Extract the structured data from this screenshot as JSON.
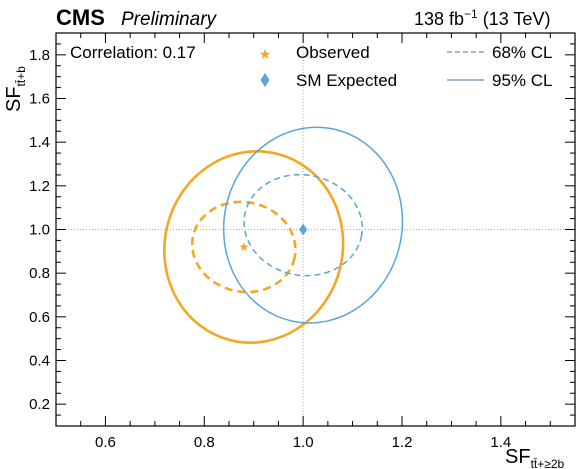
{
  "header": {
    "experiment": "CMS",
    "status": "Preliminary",
    "lumi_value": "138 fb",
    "lumi_exp": "−1",
    "energy": " (13 TeV)"
  },
  "annotation": {
    "correlation": "Correlation: 0.17"
  },
  "legend": {
    "observed": "Observed",
    "expected": "SM Expected",
    "cl68": "68% CL",
    "cl95": "95% CL"
  },
  "axes": {
    "xlabel_main": "SF",
    "xlabel_sub": "tt̄+≥2b",
    "ylabel_main": "SF",
    "ylabel_sub": "tt̄+b"
  },
  "colors": {
    "observed": "#f5a623",
    "expected": "#5aa5da",
    "reference": "#999999"
  },
  "chart_data": {
    "type": "scatter",
    "xlim": [
      0.5,
      1.55
    ],
    "ylim": [
      0.1,
      1.9
    ],
    "xticks": [
      0.6,
      0.8,
      1.0,
      1.2,
      1.4
    ],
    "xtick_labels": [
      "0.6",
      "0.8",
      "1.0",
      "1.2",
      "1.4"
    ],
    "yticks": [
      0.2,
      0.4,
      0.6,
      0.8,
      1.0,
      1.2,
      1.4,
      1.6,
      1.8
    ],
    "ytick_labels": [
      "0.2",
      "0.4",
      "0.6",
      "0.8",
      "1.0",
      "1.2",
      "1.4",
      "1.6",
      "1.8"
    ],
    "reference_lines": {
      "x": 1.0,
      "y": 1.0
    },
    "points": [
      {
        "name": "Observed",
        "x": 0.88,
        "y": 0.92,
        "marker": "star"
      },
      {
        "name": "SM Expected",
        "x": 1.0,
        "y": 1.0,
        "marker": "diamond"
      }
    ],
    "contours": [
      {
        "name": "Observed 68% CL",
        "cx": 0.88,
        "cy": 0.92,
        "rx": 0.105,
        "ry": 0.205,
        "tilt_deg": 12,
        "style": "dashed"
      },
      {
        "name": "Observed 95% CL",
        "cx": 0.9,
        "cy": 0.92,
        "rx": 0.18,
        "ry": 0.44,
        "tilt_deg": 14,
        "style": "solid"
      },
      {
        "name": "Expected 68% CL",
        "cx": 1.0,
        "cy": 1.02,
        "rx": 0.12,
        "ry": 0.23,
        "tilt_deg": 10,
        "style": "dashed"
      },
      {
        "name": "Expected 95% CL",
        "cx": 1.02,
        "cy": 1.02,
        "rx": 0.18,
        "ry": 0.45,
        "tilt_deg": 12,
        "style": "solid"
      }
    ]
  }
}
